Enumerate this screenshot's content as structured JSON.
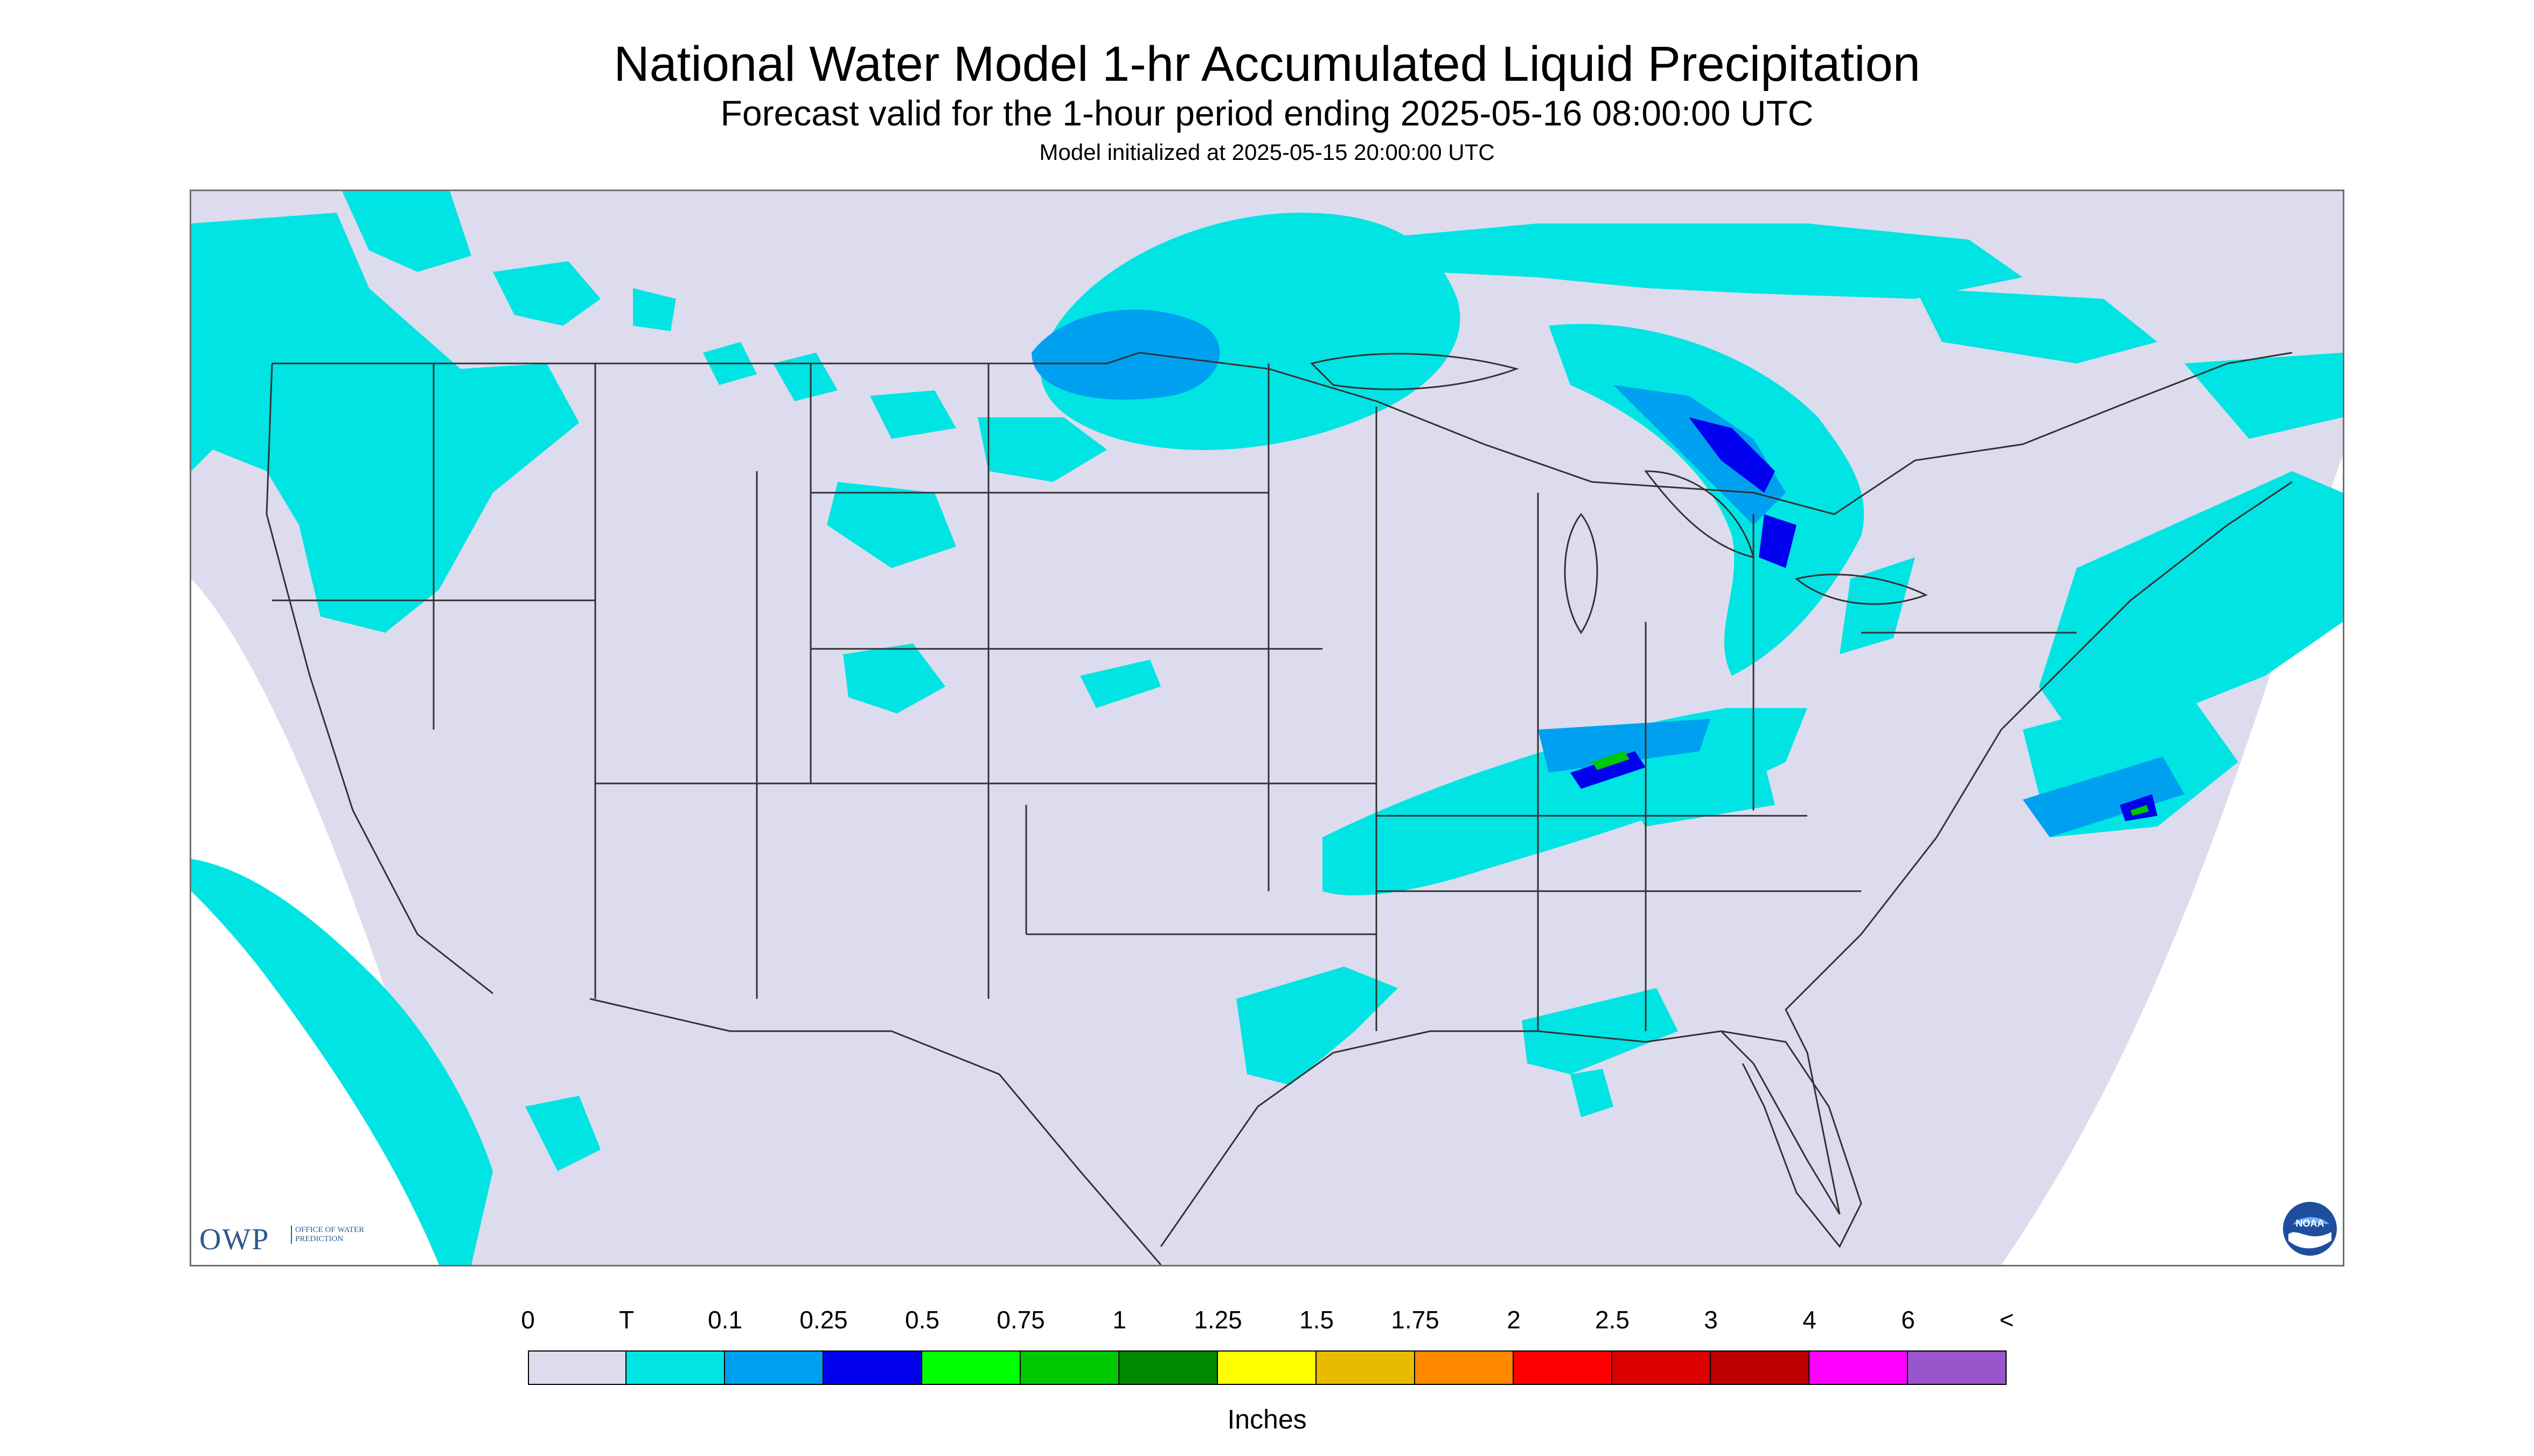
{
  "header": {
    "title": "National Water Model 1-hr Accumulated Liquid Precipitation",
    "subtitle": "Forecast valid for the 1-hour period ending 2025-05-16 08:00:00 UTC",
    "init": "Model initialized at 2025-05-15 20:00:00 UTC"
  },
  "logos": {
    "owp_letters": "OWP",
    "owp_sub": "OFFICE OF WATER PREDICTION",
    "noaa": "NOAA"
  },
  "legend": {
    "labels": [
      "0",
      "T",
      "0.1",
      "0.25",
      "0.5",
      "0.75",
      "1",
      "1.25",
      "1.5",
      "1.75",
      "2",
      "2.5",
      "3",
      "4",
      "6",
      "<"
    ],
    "colors": [
      "#dcdcee",
      "#00e4e4",
      "#00a0f0",
      "#0000ee",
      "#00ff00",
      "#00c800",
      "#008800",
      "#ffff00",
      "#e6bb00",
      "#ff8800",
      "#ff0000",
      "#dc0000",
      "#bc0000",
      "#ff00ff",
      "#9955cc"
    ],
    "units": "Inches"
  },
  "map": {
    "background_color": "#dcdcee",
    "precip_light_color": "#00e4e4",
    "precip_medium_color": "#00a0f0",
    "precip_heavy_color": "#0000ee",
    "precip_green_color": "#00c800",
    "boundary_color": "#333333"
  }
}
